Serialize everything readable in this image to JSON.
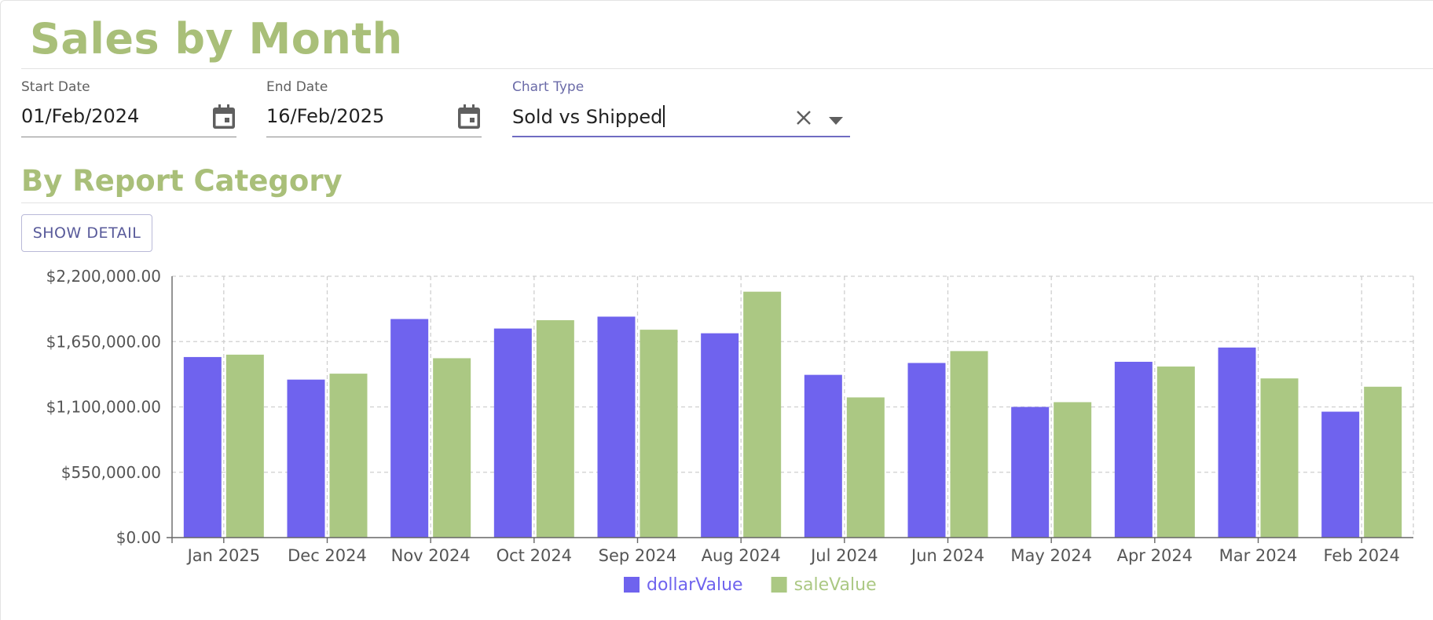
{
  "header": {
    "title": "Sales by Month"
  },
  "filters": {
    "start_date": {
      "label": "Start Date",
      "value": "01/Feb/2024"
    },
    "end_date": {
      "label": "End Date",
      "value": "16/Feb/2025"
    },
    "chart_type": {
      "label": "Chart Type",
      "value": "Sold vs Shipped"
    }
  },
  "section": {
    "title": "By Report Category",
    "show_detail_label": "SHOW DETAIL"
  },
  "colors": {
    "accent": "#a9bf79",
    "series1": "#6f63ee",
    "series2": "#abc883",
    "active_underline": "#6f6cc2"
  },
  "chart_data": {
    "type": "bar",
    "categories": [
      "Jan 2025",
      "Dec 2024",
      "Nov 2024",
      "Oct 2024",
      "Sep 2024",
      "Aug 2024",
      "Jul 2024",
      "Jun 2024",
      "May 2024",
      "Apr 2024",
      "Mar 2024",
      "Feb 2024"
    ],
    "series": [
      {
        "name": "dollarValue",
        "color": "#6f63ee",
        "values": [
          1520000,
          1330000,
          1840000,
          1760000,
          1860000,
          1720000,
          1370000,
          1470000,
          1100000,
          1480000,
          1600000,
          1060000
        ]
      },
      {
        "name": "saleValue",
        "color": "#abc883",
        "values": [
          1540000,
          1380000,
          1510000,
          1830000,
          1750000,
          2070000,
          1180000,
          1570000,
          1140000,
          1440000,
          1340000,
          1270000
        ]
      }
    ],
    "y_ticks": [
      "$0.00",
      "$550,000.00",
      "$1,100,000.00",
      "$1,650,000.00",
      "$2,200,000.00"
    ],
    "ylim": [
      0,
      2200000
    ],
    "grid": true,
    "legend": "bottom-center"
  }
}
